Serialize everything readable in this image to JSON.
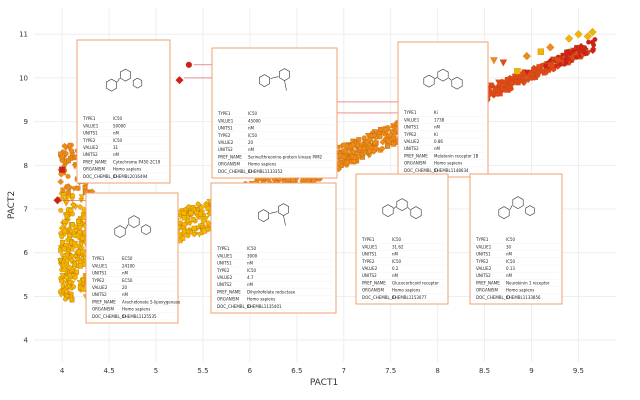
{
  "chart_data": {
    "type": "scatter",
    "title": "",
    "xlabel": "PACT1",
    "ylabel": "PACT2",
    "xlim": [
      3.7,
      9.9
    ],
    "ylim": [
      3.5,
      11.6
    ],
    "xticks": [
      4,
      4.5,
      5,
      5.5,
      6,
      6.5,
      7,
      7.5,
      8,
      8.5,
      9,
      9.5
    ],
    "yticks": [
      4,
      5,
      6,
      7,
      8,
      9,
      10,
      11
    ],
    "tick_labels_x": [
      "4",
      "4.5",
      "5",
      "5.5",
      "6",
      "6.5",
      "7",
      "7.5",
      "8",
      "8.5",
      "9",
      "9.5"
    ],
    "tick_labels_y": [
      "4",
      "5",
      "6",
      "7",
      "8",
      "9",
      "10",
      "11"
    ],
    "grid": true,
    "colors": {
      "low": "#f5b400",
      "mid": "#f08a18",
      "high": "#e8461c",
      "top": "#d41c1c",
      "card_border": "#f0a071",
      "connector": "#e05050",
      "grid": "#eeeeee"
    },
    "marker_shapes": [
      "circle",
      "square",
      "diamond",
      "triangle-down"
    ],
    "anchor_points": [
      {
        "x": 4.25,
        "y": 8.45
      },
      {
        "x": 5.3,
        "y": 10.0
      },
      {
        "x": 6.85,
        "y": 9.45
      },
      {
        "x": 4.0,
        "y": 7.2
      },
      {
        "x": 5.4,
        "y": 10.3
      },
      {
        "x": 6.9,
        "y": 9.2
      }
    ],
    "extra_points": [
      {
        "x": 3.95,
        "y": 7.2,
        "shape": "diamond",
        "level": "top"
      },
      {
        "x": 4.0,
        "y": 7.9,
        "shape": "square",
        "level": "top"
      },
      {
        "x": 5.35,
        "y": 10.3,
        "shape": "circle",
        "level": "top"
      },
      {
        "x": 5.25,
        "y": 9.95,
        "shape": "diamond",
        "level": "top"
      },
      {
        "x": 4.35,
        "y": 8.4,
        "shape": "circle",
        "level": "top"
      },
      {
        "x": 9.5,
        "y": 11.0,
        "shape": "diamond",
        "level": "low"
      },
      {
        "x": 9.6,
        "y": 10.95,
        "shape": "diamond",
        "level": "low"
      },
      {
        "x": 9.65,
        "y": 11.05,
        "shape": "diamond",
        "level": "low"
      },
      {
        "x": 9.4,
        "y": 10.9,
        "shape": "diamond",
        "level": "low"
      },
      {
        "x": 9.1,
        "y": 10.6,
        "shape": "square",
        "level": "low"
      },
      {
        "x": 9.2,
        "y": 10.7,
        "shape": "diamond",
        "level": "mid"
      },
      {
        "x": 8.95,
        "y": 10.5,
        "shape": "diamond",
        "level": "mid"
      },
      {
        "x": 8.6,
        "y": 10.4,
        "shape": "triangle-down",
        "level": "mid"
      },
      {
        "x": 8.7,
        "y": 10.35,
        "shape": "triangle-down",
        "level": "high"
      },
      {
        "x": 8.45,
        "y": 10.3,
        "shape": "triangle-down",
        "level": "high"
      },
      {
        "x": 8.3,
        "y": 10.2,
        "shape": "triangle-down",
        "level": "mid"
      },
      {
        "x": 7.9,
        "y": 10.1,
        "shape": "circle",
        "level": "high"
      },
      {
        "x": 8.1,
        "y": 10.05,
        "shape": "circle",
        "level": "mid"
      },
      {
        "x": 8.85,
        "y": 10.15,
        "shape": "square",
        "level": "low"
      }
    ],
    "annotations": [
      {
        "id": "cyp2c19",
        "lines": [
          [
            "TYPE1",
            "IC50"
          ],
          [
            "VALUE1",
            "50000"
          ],
          [
            "UNITS1",
            "nM"
          ],
          [
            "TYPE2",
            "IC50"
          ],
          [
            "VALUE2",
            "31"
          ],
          [
            "UNITS2",
            "nM"
          ],
          [
            "PREF_NAME",
            "Cytochrome P450 2C19"
          ],
          [
            "ORGANISM",
            "Homo sapiens"
          ],
          [
            "DOC_CHEMBL_ID",
            "CHEMBL2016494"
          ]
        ]
      },
      {
        "id": "serine-kinase",
        "lines": [
          [
            "TYPE1",
            "IC50"
          ],
          [
            "VALUE1",
            "45000"
          ],
          [
            "UNITS1",
            "nM"
          ],
          [
            "TYPE2",
            "IC50"
          ],
          [
            "VALUE2",
            "20"
          ],
          [
            "UNITS2",
            "nM"
          ],
          [
            "PREF_NAME",
            "Serine/threonine-protein kinase PIM2"
          ],
          [
            "ORGANISM",
            "Homo sapiens"
          ],
          [
            "DOC_CHEMBL_ID",
            "CHEMBL1133352"
          ]
        ]
      },
      {
        "id": "melatonin",
        "lines": [
          [
            "TYPE1",
            "Ki"
          ],
          [
            "VALUE1",
            "1738"
          ],
          [
            "UNITS1",
            "nM"
          ],
          [
            "TYPE2",
            "Ki"
          ],
          [
            "VALUE2",
            "0.86"
          ],
          [
            "UNITS2",
            "nM"
          ],
          [
            "PREF_NAME",
            "Melatonin receptor 1B"
          ],
          [
            "ORGANISM",
            "Homo sapiens"
          ],
          [
            "DOC_CHEMBL_ID",
            "CHEMBL1148634"
          ]
        ]
      },
      {
        "id": "lipoxygenase",
        "lines": [
          [
            "TYPE1",
            "EC50"
          ],
          [
            "VALUE1",
            "24100"
          ],
          [
            "UNITS1",
            "nM"
          ],
          [
            "TYPE2",
            "EC50"
          ],
          [
            "VALUE2",
            "20"
          ],
          [
            "UNITS2",
            "nM"
          ],
          [
            "PREF_NAME",
            "Arachidonate 5-lipoxygenase"
          ],
          [
            "ORGANISM",
            "Homo sapiens"
          ],
          [
            "DOC_CHEMBL_ID",
            "CHEMBL1125535"
          ]
        ]
      },
      {
        "id": "dhfr",
        "lines": [
          [
            "TYPE1",
            "IC50"
          ],
          [
            "VALUE1",
            "3900"
          ],
          [
            "UNITS1",
            "nM"
          ],
          [
            "TYPE2",
            "IC50"
          ],
          [
            "VALUE2",
            "4.7"
          ],
          [
            "UNITS2",
            "nM"
          ],
          [
            "PREF_NAME",
            "Dihydrofolate reductase"
          ],
          [
            "ORGANISM",
            "Homo sapiens"
          ],
          [
            "DOC_CHEMBL_ID",
            "CHEMBL1135401"
          ]
        ]
      },
      {
        "id": "glucocorticoid",
        "lines": [
          [
            "TYPE1",
            "IC50"
          ],
          [
            "VALUE1",
            "31.62"
          ],
          [
            "UNITS1",
            "nM"
          ],
          [
            "TYPE2",
            "IC50"
          ],
          [
            "VALUE2",
            "0.2"
          ],
          [
            "UNITS2",
            "nM"
          ],
          [
            "PREF_NAME",
            "Glucocorticoid receptor"
          ],
          [
            "ORGANISM",
            "Homo sapiens"
          ],
          [
            "DOC_CHEMBL_ID",
            "CHEMBL1153077"
          ]
        ]
      },
      {
        "id": "neurokinin",
        "lines": [
          [
            "TYPE1",
            "IC50"
          ],
          [
            "VALUE1",
            "30"
          ],
          [
            "UNITS1",
            "nM"
          ],
          [
            "TYPE2",
            "IC50"
          ],
          [
            "VALUE2",
            "0.13"
          ],
          [
            "UNITS2",
            "nM"
          ],
          [
            "PREF_NAME",
            "Neurokinin 1 receptor"
          ],
          [
            "ORGANISM",
            "Homo sapiens"
          ],
          [
            "DOC_CHEMBL_ID",
            "CHEMBL1133856"
          ]
        ]
      }
    ]
  }
}
